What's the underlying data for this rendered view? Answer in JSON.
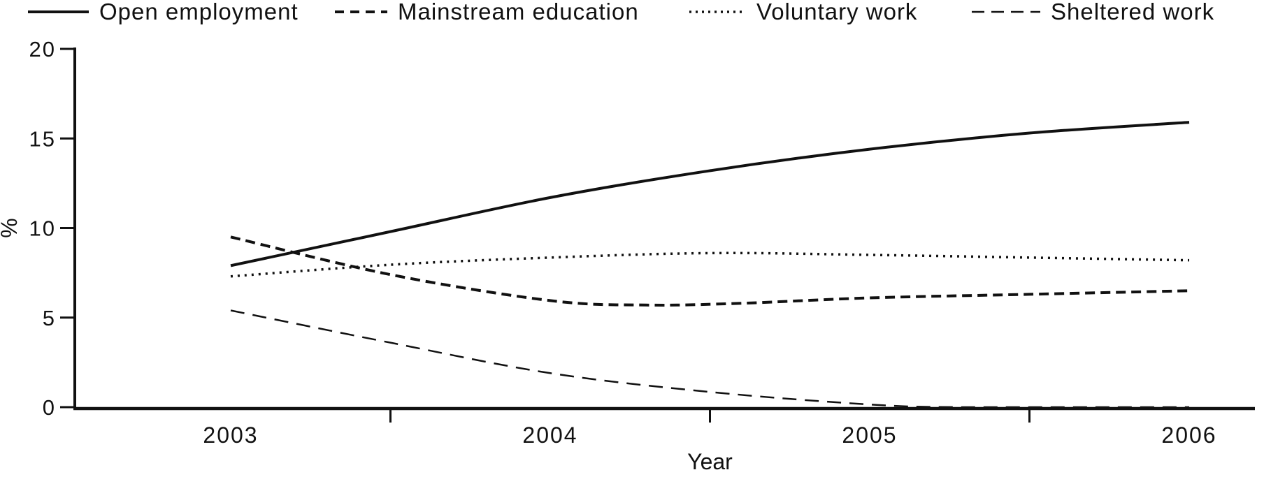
{
  "chart_data": {
    "type": "line",
    "title": "",
    "xlabel": "Year",
    "ylabel": "%",
    "x_ticks": [
      2003,
      2004,
      2005,
      2006
    ],
    "y_ticks": [
      0,
      5,
      10,
      15,
      20
    ],
    "ylim": [
      0,
      20
    ],
    "xlim": [
      2003,
      2006
    ],
    "grid": false,
    "legend_position": "top",
    "line_color": "#111111",
    "series": [
      {
        "name": "Open employment",
        "style": "solid",
        "points": [
          [
            2003,
            7.9
          ],
          [
            2003.5,
            9.8
          ],
          [
            2004,
            11.7
          ],
          [
            2004.5,
            13.2
          ],
          [
            2005,
            14.4
          ],
          [
            2005.5,
            15.3
          ],
          [
            2006,
            15.9
          ]
        ]
      },
      {
        "name": "Mainstream education",
        "style": "dashed",
        "points": [
          [
            2003,
            9.5
          ],
          [
            2003.5,
            7.4
          ],
          [
            2004,
            5.95
          ],
          [
            2004.3,
            5.7
          ],
          [
            2004.6,
            5.8
          ],
          [
            2005,
            6.1
          ],
          [
            2005.5,
            6.3
          ],
          [
            2006,
            6.5
          ]
        ]
      },
      {
        "name": "Voluntary work",
        "style": "dotted",
        "points": [
          [
            2003,
            7.3
          ],
          [
            2003.5,
            7.95
          ],
          [
            2004,
            8.35
          ],
          [
            2004.5,
            8.6
          ],
          [
            2005,
            8.5
          ],
          [
            2005.5,
            8.35
          ],
          [
            2006,
            8.2
          ]
        ]
      },
      {
        "name": "Sheltered work",
        "style": "longdash",
        "points": [
          [
            2003,
            5.4
          ],
          [
            2003.5,
            3.6
          ],
          [
            2004,
            1.9
          ],
          [
            2004.5,
            0.85
          ],
          [
            2005,
            0.15
          ],
          [
            2005.3,
            0
          ],
          [
            2006,
            0
          ]
        ]
      }
    ]
  }
}
